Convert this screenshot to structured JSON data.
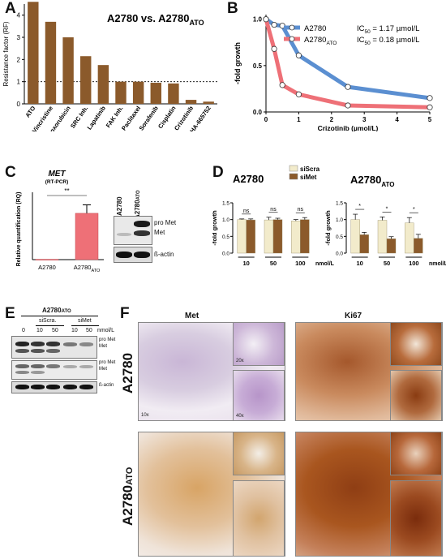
{
  "panels": {
    "A": {
      "letter": "A",
      "title_main": "A2780 vs. A2780",
      "title_sub": "ATO",
      "chart_data": {
        "type": "bar",
        "ylabel": "Resistance factor (RF)",
        "ylim": [
          0,
          4.5
        ],
        "yticks": [
          "0",
          "1",
          "2",
          "3",
          "4"
        ],
        "reference_line": 1,
        "categories": [
          "ATO",
          "Vincristine",
          "Doxorubicin",
          "SRC Inh.",
          "Lapatinib",
          "FAK Inh.",
          "Paclitaxel",
          "Sorafenib",
          "Cisplatin",
          "Crizotinib",
          "PHA-665752"
        ],
        "values": [
          4.6,
          3.7,
          3.0,
          2.15,
          1.75,
          1.0,
          1.0,
          0.95,
          0.92,
          0.18,
          0.1
        ],
        "bar_color": "#8B5A2B"
      }
    },
    "B": {
      "letter": "B",
      "chart_data": {
        "type": "line",
        "xlabel": "Crizotinib (µmol/L)",
        "ylabel": "-fold growth",
        "xlim": [
          0,
          5
        ],
        "ylim": [
          0,
          1.05
        ],
        "xticks": [
          "0",
          "1",
          "2",
          "3",
          "4",
          "5"
        ],
        "yticks": [
          "0.0",
          "0.5",
          "1.0"
        ],
        "series": [
          {
            "name": "A2780",
            "ic50": "IC",
            "ic50_sub": "50",
            "ic50_val": " = 1.17 µmol/L",
            "color": "#5B8FD1",
            "x": [
              0,
              0.25,
              0.5,
              1,
              2.5,
              5
            ],
            "y": [
              1.0,
              0.94,
              0.93,
              0.61,
              0.27,
              0.15
            ]
          },
          {
            "name": "A2780",
            "name_sub": "ATO",
            "ic50": "IC",
            "ic50_sub": "50",
            "ic50_val": " = 0.18 µmol/L",
            "color": "#EE7077",
            "x": [
              0,
              0.25,
              0.5,
              1,
              2.5,
              5
            ],
            "y": [
              1.0,
              0.68,
              0.29,
              0.19,
              0.07,
              0.05
            ]
          }
        ]
      }
    },
    "C": {
      "letter": "C",
      "title": "MET",
      "subtitle": "(RT-PCR)",
      "significance": "**",
      "chart_data": {
        "type": "bar",
        "ylabel": "Relative quantification (RQ)",
        "categories": [
          "A2780",
          "A2780"
        ],
        "category_sub": [
          "",
          "ATO"
        ],
        "values": [
          1,
          137
        ],
        "error": [
          0,
          25
        ],
        "colors": [
          "#EE7077",
          "#EE7077"
        ],
        "ylim": [
          0,
          180
        ]
      },
      "blot": {
        "lane_labels": [
          "A2780",
          "A2780"
        ],
        "lane_sub": [
          "",
          "ATO"
        ],
        "band_labels": [
          "pro Met",
          "Met",
          "ß-actin"
        ]
      }
    },
    "D": {
      "letter": "D",
      "legend": [
        "siScra",
        "siMet"
      ],
      "colors": {
        "siScra": "#F2EBCB",
        "siMet": "#8B5A2B"
      },
      "unit": "nmol/L",
      "chart_data": [
        {
          "type": "bar",
          "title": "A2780",
          "title_sub": "",
          "ylabel": "-fold growth",
          "categories": [
            "10",
            "50",
            "100"
          ],
          "ylim": [
            0,
            1.5
          ],
          "yticks": [
            "0.0",
            "0.5",
            "1.0",
            "1.5"
          ],
          "series": [
            {
              "name": "siScra",
              "values": [
                1.0,
                0.99,
                0.96
              ],
              "error": [
                0.02,
                0.08,
                0.04
              ]
            },
            {
              "name": "siMet",
              "values": [
                0.99,
                1.0,
                1.0
              ],
              "error": [
                0.03,
                0.04,
                0.06
              ]
            }
          ],
          "annotations": [
            "ns",
            "ns",
            "ns"
          ]
        },
        {
          "type": "bar",
          "title": "A2780",
          "title_sub": "ATO",
          "ylabel": "-fold growth",
          "categories": [
            "10",
            "50",
            "100"
          ],
          "ylim": [
            0,
            1.5
          ],
          "yticks": [
            "0.0",
            "0.5",
            "1.0",
            "1.5"
          ],
          "series": [
            {
              "name": "siScra",
              "values": [
                1.0,
                0.98,
                0.9
              ],
              "error": [
                0.16,
                0.1,
                0.16
              ]
            },
            {
              "name": "siMet",
              "values": [
                0.55,
                0.43,
                0.44
              ],
              "error": [
                0.07,
                0.06,
                0.12
              ]
            }
          ],
          "annotations": [
            "*",
            "*",
            "*"
          ]
        }
      ]
    },
    "E": {
      "letter": "E",
      "header": "A2780",
      "header_sub": "ATO",
      "group_labels": [
        "siScra.",
        "siMet"
      ],
      "lane_doses": [
        "0",
        "10",
        "50",
        "10",
        "50"
      ],
      "unit": "nmol/L",
      "band_labels": [
        [
          "pro Met",
          "Met"
        ],
        [
          "pro Met",
          "Met"
        ],
        [
          "ß-actin"
        ]
      ]
    },
    "F": {
      "letter": "F",
      "columns": [
        "Met",
        "Ki67"
      ],
      "rows": [
        {
          "label": "A2780",
          "sub": ""
        },
        {
          "label": "A2780",
          "sub": "ATO"
        }
      ],
      "magnifications": [
        "10x",
        "20x",
        "40x"
      ]
    }
  }
}
